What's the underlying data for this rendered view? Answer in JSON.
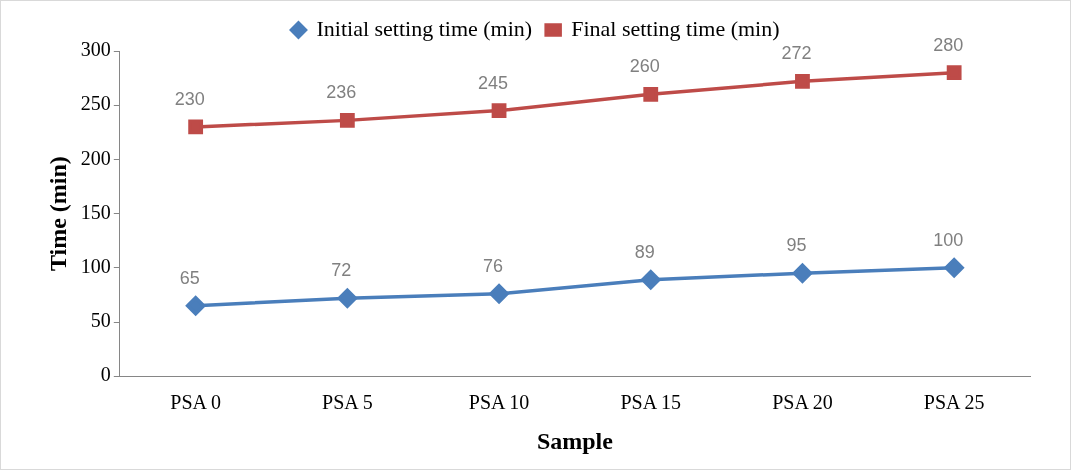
{
  "chart_data": {
    "type": "line",
    "xlabel": "Sample",
    "ylabel": "Time (min)",
    "categories": [
      "PSA 0",
      "PSA 5",
      "PSA 10",
      "PSA 15",
      "PSA 20",
      "PSA 25"
    ],
    "series": [
      {
        "name": "Initial setting time (min)",
        "color": "#4a7ebb",
        "marker": "diamond",
        "values": [
          65,
          72,
          76,
          89,
          95,
          100
        ]
      },
      {
        "name": "Final setting time (min)",
        "color": "#be4b48",
        "marker": "square",
        "values": [
          230,
          236,
          245,
          260,
          272,
          280
        ]
      }
    ],
    "ylim": [
      0,
      300
    ],
    "yticks": [
      0,
      50,
      100,
      150,
      200,
      250,
      300
    ],
    "grid": false,
    "legend": "top",
    "data_labels": true,
    "line_style": "solid"
  }
}
